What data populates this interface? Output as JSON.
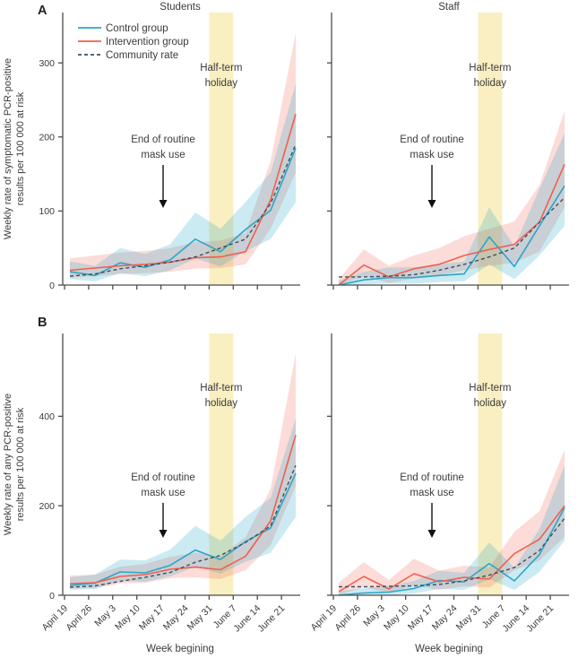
{
  "figure": {
    "panel_letters": [
      "A",
      "B"
    ],
    "column_titles": [
      "Students",
      "Staff"
    ],
    "x_axis_title": "Week begining",
    "colors": {
      "control": "#2BA6C9",
      "intervention": "#F0604C",
      "community": "#3E4F5E",
      "holiday_band": "#F9EFC1",
      "spine": "#4C4C4C",
      "text": "#3B3B3B"
    }
  },
  "legend": {
    "items": [
      {
        "label": "Control group",
        "color": "#2BA6C9",
        "dash": null
      },
      {
        "label": "Intervention group",
        "color": "#F0604C",
        "dash": null
      },
      {
        "label": "Community rate",
        "color": "#3E4F5E",
        "dash": "4 3"
      }
    ]
  },
  "annotations": {
    "holiday_lines": [
      "Half-term",
      "holiday"
    ],
    "mask_lines": [
      "End of routine",
      "mask use"
    ]
  },
  "axes": {
    "x_ticks": [
      "April 19",
      "April 26",
      "May 3",
      "May 10",
      "May 17",
      "May 24",
      "May 31",
      "June 7",
      "June 14",
      "June 21"
    ],
    "panel_a_ylabel_lines": [
      "Weekly rate of symptomatic PCR-positive",
      "results per 100 000 at risk"
    ],
    "panel_b_ylabel_lines": [
      "Weekly rate of any PCR-positive",
      "results per 100 000 at risk"
    ],
    "panel_a_yticks": [
      0,
      100,
      200,
      300
    ],
    "panel_b_yticks": [
      0,
      200,
      400
    ]
  },
  "chart_data": [
    {
      "type": "line",
      "panel": "A",
      "title": "Students",
      "ylabel": "Weekly rate of symptomatic PCR-positive results per 100 000 at risk",
      "x": [
        "April 19",
        "April 26",
        "May 3",
        "May 10",
        "May 17",
        "May 24",
        "May 31",
        "June 7",
        "June 14",
        "June 21"
      ],
      "ylim": [
        0,
        368
      ],
      "yticks": [
        0,
        100,
        200,
        300
      ],
      "highlight_band": {
        "label": "Half-term holiday",
        "from": "May 31",
        "to": "June 7"
      },
      "annotation": {
        "label": "End of routine mask use",
        "at": "May 17"
      },
      "series": [
        {
          "name": "Control group",
          "values": [
            18,
            13,
            30,
            24,
            34,
            62,
            45,
            75,
            101,
            185
          ],
          "ci_lower": [
            8,
            5,
            16,
            12,
            20,
            36,
            25,
            46,
            62,
            112
          ],
          "ci_upper": [
            32,
            26,
            50,
            42,
            55,
            98,
            76,
            112,
            152,
            272
          ]
        },
        {
          "name": "Intervention group",
          "values": [
            20,
            23,
            26,
            28,
            31,
            37,
            38,
            45,
            115,
            231
          ],
          "ci_lower": [
            10,
            12,
            15,
            16,
            18,
            22,
            23,
            28,
            76,
            152
          ],
          "ci_upper": [
            36,
            40,
            44,
            46,
            50,
            58,
            60,
            70,
            168,
            340
          ]
        },
        {
          "name": "Community rate",
          "values": [
            12,
            15,
            22,
            26,
            31,
            38,
            50,
            62,
            110,
            190
          ]
        }
      ]
    },
    {
      "type": "line",
      "panel": "A",
      "title": "Staff",
      "ylabel": "Weekly rate of symptomatic PCR-positive results per 100 000 at risk",
      "x": [
        "April 19",
        "April 26",
        "May 3",
        "May 10",
        "May 17",
        "May 24",
        "May 31",
        "June 7",
        "June 14",
        "June 21"
      ],
      "ylim": [
        0,
        368
      ],
      "yticks": [
        0,
        100,
        200,
        300
      ],
      "highlight_band": {
        "label": "Half-term holiday",
        "from": "May 31",
        "to": "June 7"
      },
      "annotation": {
        "label": "End of routine mask use",
        "at": "May 17"
      },
      "series": [
        {
          "name": "Control group",
          "values": [
            0,
            7,
            10,
            10,
            13,
            15,
            65,
            25,
            80,
            134
          ],
          "ci_lower": [
            0,
            1,
            2,
            2,
            4,
            5,
            28,
            8,
            40,
            80
          ],
          "ci_upper": [
            6,
            18,
            24,
            24,
            28,
            32,
            105,
            52,
            130,
            205
          ]
        },
        {
          "name": "Intervention group",
          "values": [
            0,
            27,
            11,
            22,
            28,
            40,
            48,
            55,
            85,
            163
          ],
          "ci_lower": [
            0,
            12,
            3,
            9,
            13,
            20,
            26,
            30,
            45,
            105
          ],
          "ci_upper": [
            8,
            48,
            26,
            40,
            50,
            66,
            76,
            86,
            135,
            235
          ]
        },
        {
          "name": "Community rate",
          "values": [
            11,
            11,
            12,
            14,
            20,
            28,
            38,
            50,
            85,
            118
          ]
        }
      ]
    },
    {
      "type": "line",
      "panel": "B",
      "title": "Students",
      "ylabel": "Weekly rate of any PCR-positive results per 100 000 at risk",
      "x": [
        "April 19",
        "April 26",
        "May 3",
        "May 10",
        "May 17",
        "May 24",
        "May 31",
        "June 7",
        "June 14",
        "June 21"
      ],
      "ylim": [
        0,
        585
      ],
      "yticks": [
        0,
        200,
        400
      ],
      "highlight_band": {
        "label": "Half-term holiday",
        "from": "May 31",
        "to": "June 7"
      },
      "annotation": {
        "label": "End of routine mask use",
        "at": "May 17"
      },
      "series": [
        {
          "name": "Control group",
          "values": [
            22,
            27,
            52,
            50,
            67,
            101,
            80,
            120,
            150,
            272
          ],
          "ci_lower": [
            12,
            14,
            32,
            30,
            42,
            64,
            48,
            75,
            95,
            175
          ],
          "ci_upper": [
            40,
            46,
            80,
            78,
            102,
            155,
            122,
            175,
            218,
            395
          ]
        },
        {
          "name": "Intervention group",
          "values": [
            26,
            28,
            42,
            46,
            58,
            63,
            57,
            87,
            166,
            358
          ],
          "ci_lower": [
            15,
            16,
            26,
            28,
            38,
            40,
            36,
            56,
            112,
            245
          ],
          "ci_upper": [
            44,
            46,
            64,
            70,
            86,
            95,
            86,
            130,
            238,
            540
          ]
        },
        {
          "name": "Community rate",
          "values": [
            18,
            21,
            31,
            40,
            51,
            74,
            89,
            118,
            155,
            290
          ]
        }
      ]
    },
    {
      "type": "line",
      "panel": "B",
      "title": "Staff",
      "ylabel": "Weekly rate of any PCR-positive results per 100 000 at risk",
      "x": [
        "April 19",
        "April 26",
        "May 3",
        "May 10",
        "May 17",
        "May 24",
        "May 31",
        "June 7",
        "June 14",
        "June 21"
      ],
      "ylim": [
        0,
        585
      ],
      "yticks": [
        0,
        200,
        400
      ],
      "highlight_band": {
        "label": "Half-term holiday",
        "from": "May 31",
        "to": "June 7"
      },
      "annotation": {
        "label": "End of routine mask use",
        "at": "May 17"
      },
      "series": [
        {
          "name": "Control group",
          "values": [
            0,
            5,
            7,
            15,
            33,
            30,
            71,
            32,
            91,
            196
          ],
          "ci_lower": [
            0,
            0,
            0,
            4,
            14,
            12,
            36,
            12,
            52,
            122
          ],
          "ci_upper": [
            9,
            16,
            20,
            32,
            55,
            50,
            118,
            62,
            148,
            290
          ]
        },
        {
          "name": "Intervention group",
          "values": [
            8,
            42,
            14,
            48,
            30,
            40,
            36,
            93,
            125,
            200
          ],
          "ci_lower": [
            1,
            18,
            5,
            22,
            12,
            20,
            17,
            56,
            78,
            130
          ],
          "ci_upper": [
            28,
            74,
            34,
            82,
            55,
            66,
            62,
            142,
            188,
            325
          ]
        },
        {
          "name": "Community rate",
          "values": [
            19,
            19,
            20,
            21,
            24,
            32,
            45,
            62,
            100,
            172
          ]
        }
      ]
    }
  ]
}
